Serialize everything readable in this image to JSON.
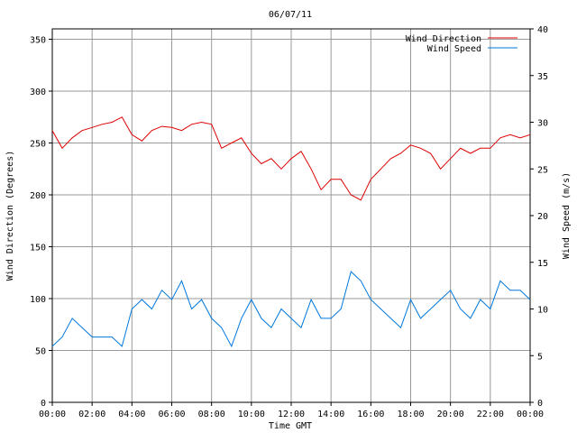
{
  "chart_data": {
    "type": "line",
    "title": "06/07/11",
    "xlabel": "Time GMT",
    "ylabel_left": "Wind Direction (Degrees)",
    "ylabel_right": "Wind Speed (m/s)",
    "x_ticks": [
      "00:00",
      "02:00",
      "04:00",
      "06:00",
      "08:00",
      "10:00",
      "12:00",
      "14:00",
      "16:00",
      "18:00",
      "20:00",
      "22:00",
      "00:00"
    ],
    "x_range_hours": [
      0,
      24
    ],
    "ylim_left": [
      0,
      360
    ],
    "y_ticks_left": [
      0,
      50,
      100,
      150,
      200,
      250,
      300,
      350
    ],
    "ylim_right": [
      0,
      40
    ],
    "y_ticks_right": [
      0,
      5,
      10,
      15,
      20,
      25,
      30,
      35,
      40
    ],
    "grid": true,
    "legend_position": "top-right",
    "series": [
      {
        "name": "Wind Direction",
        "axis": "left",
        "color": "#dd0000",
        "x_hours": [
          0,
          0.5,
          1,
          1.5,
          2,
          2.5,
          3,
          3.5,
          4,
          4.5,
          5,
          5.5,
          6,
          6.5,
          7,
          7.5,
          8,
          8.5,
          9,
          9.5,
          10,
          10.5,
          11,
          11.5,
          12,
          12.5,
          13,
          13.5,
          14,
          14.5,
          15,
          15.5,
          16,
          16.5,
          17,
          17.5,
          18,
          18.5,
          19,
          19.5,
          20,
          20.5,
          21,
          21.5,
          22,
          22.5,
          23,
          23.5,
          24
        ],
        "values": [
          262,
          245,
          255,
          262,
          265,
          268,
          270,
          275,
          258,
          252,
          262,
          266,
          265,
          262,
          268,
          270,
          268,
          245,
          250,
          255,
          240,
          230,
          235,
          225,
          235,
          242,
          225,
          205,
          215,
          215,
          200,
          195,
          215,
          225,
          235,
          240,
          248,
          245,
          240,
          225,
          235,
          245,
          240,
          245,
          245,
          255,
          258,
          255,
          258
        ]
      },
      {
        "name": "Wind Speed",
        "axis": "right",
        "color": "#0077dd",
        "x_hours": [
          0,
          0.5,
          1,
          1.5,
          2,
          2.5,
          3,
          3.5,
          4,
          4.5,
          5,
          5.5,
          6,
          6.5,
          7,
          7.5,
          8,
          8.5,
          9,
          9.5,
          10,
          10.5,
          11,
          11.5,
          12,
          12.5,
          13,
          13.5,
          14,
          14.5,
          15,
          15.5,
          16,
          16.5,
          17,
          17.5,
          18,
          18.5,
          19,
          19.5,
          20,
          20.5,
          21,
          21.5,
          22,
          22.5,
          23,
          23.5,
          24
        ],
        "values": [
          6,
          7,
          9,
          8,
          7,
          7,
          7,
          6,
          10,
          11,
          10,
          12,
          11,
          13,
          10,
          11,
          9,
          8,
          6,
          9,
          11,
          9,
          8,
          10,
          9,
          8,
          11,
          9,
          9,
          10,
          14,
          13,
          11,
          10,
          9,
          8,
          11,
          9,
          10,
          11,
          12,
          10,
          9,
          11,
          10,
          13,
          12,
          12,
          11
        ]
      }
    ]
  }
}
